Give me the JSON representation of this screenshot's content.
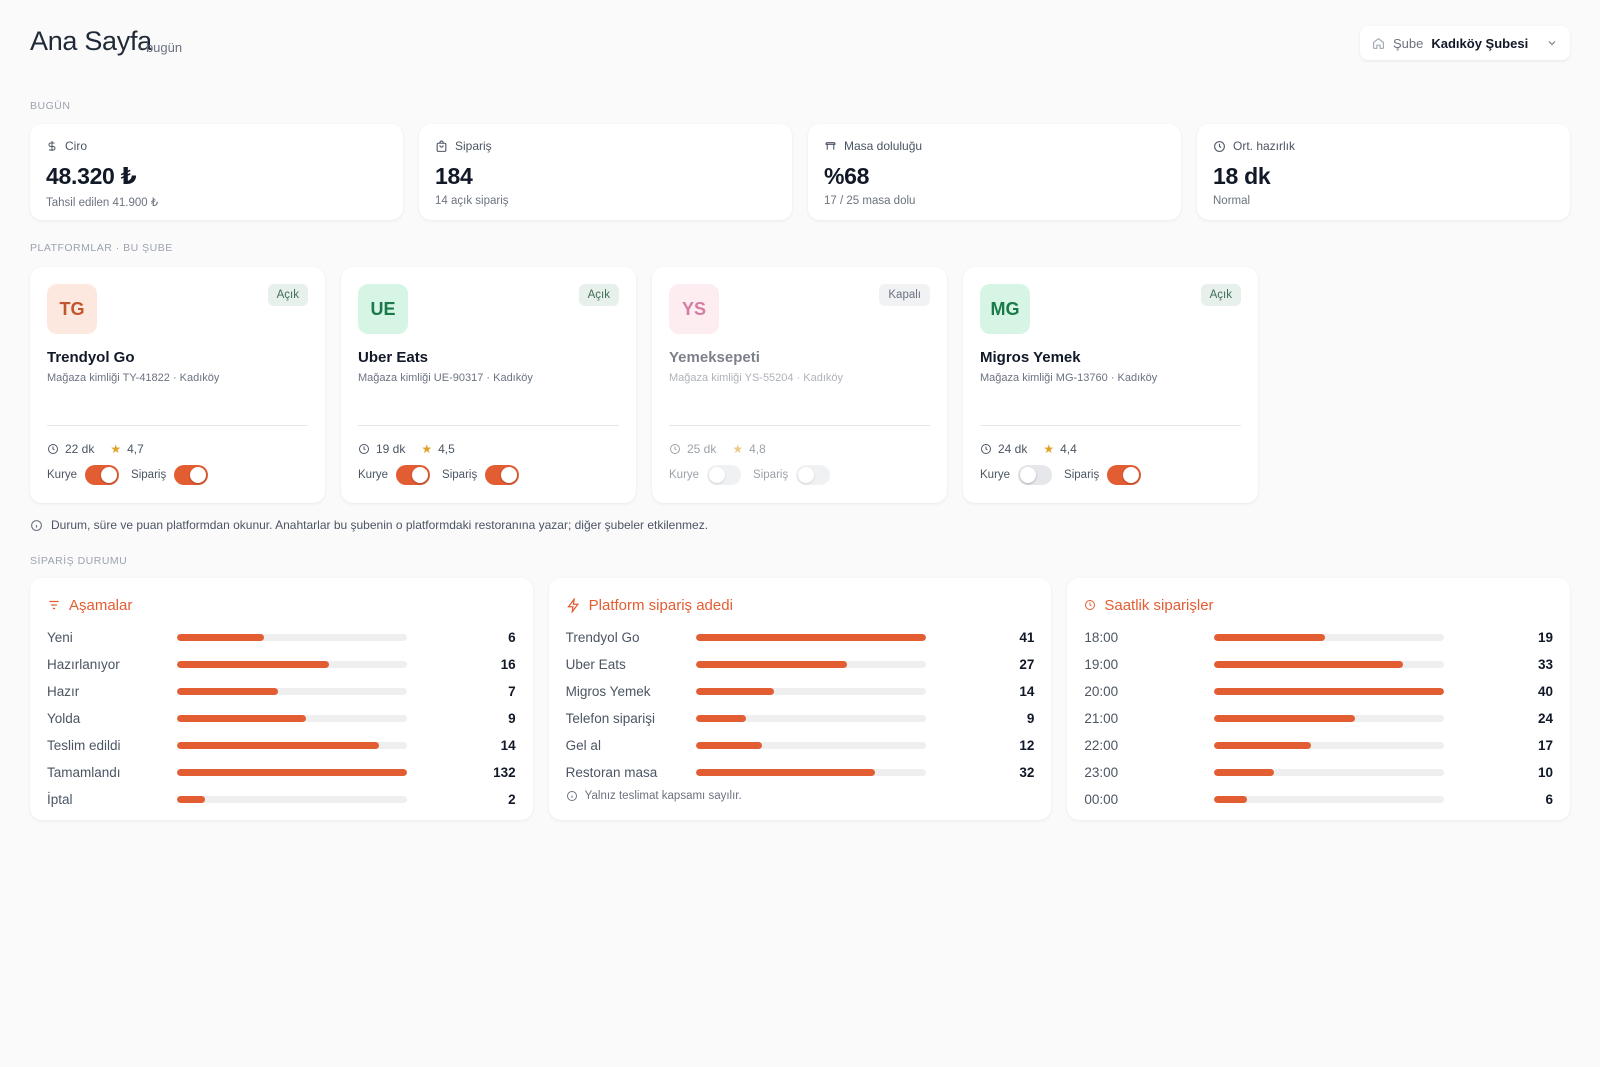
{
  "header": {
    "title": "Ana Sayfa",
    "subtitle": "· bugün",
    "branch_label": "Şube",
    "branch_value": "Kadıköy Şubesi"
  },
  "sections": {
    "today": "BUGÜN",
    "platforms": "PLATFORMLAR · BU ŞUBE",
    "order_status": "SİPARİŞ DURUMU"
  },
  "kpis": [
    {
      "label": "Ciro",
      "value": "48.320 ₺",
      "sub": "Tahsil edilen 41.900 ₺",
      "icon": "dollar-icon"
    },
    {
      "label": "Sipariş",
      "value": "184",
      "sub": "14 açık sipariş",
      "icon": "shopping-bag-icon"
    },
    {
      "label": "Masa doluluğu",
      "value": "%68",
      "sub": "17 / 25 masa dolu",
      "icon": "table-icon"
    },
    {
      "label": "Ort. hazırlık",
      "value": "18 dk",
      "sub": "Normal",
      "icon": "clock-icon"
    }
  ],
  "platforms": [
    {
      "initials": "TG",
      "name": "Trendyol Go",
      "store": "Mağaza kimliği TY-41822 · Kadıköy",
      "status": "Açık",
      "open": true,
      "time": "22 dk",
      "rating": "4,7",
      "courier_label": "Kurye",
      "order_label": "Sipariş",
      "courier_on": true,
      "order_on": true,
      "logo_bg": "#fde8e0",
      "logo_fg": "#c2552b"
    },
    {
      "initials": "UE",
      "name": "Uber Eats",
      "store": "Mağaza kimliği UE-90317 · Kadıköy",
      "status": "Açık",
      "open": true,
      "time": "19 dk",
      "rating": "4,5",
      "courier_label": "Kurye",
      "order_label": "Sipariş",
      "courier_on": true,
      "order_on": true,
      "logo_bg": "#d6f5e4",
      "logo_fg": "#1a7a4a"
    },
    {
      "initials": "YS",
      "name": "Yemeksepeti",
      "store": "Mağaza kimliği YS-55204 · Kadıköy",
      "status": "Kapalı",
      "open": false,
      "time": "25 dk",
      "rating": "4,8",
      "courier_label": "Kurye",
      "order_label": "Sipariş",
      "courier_on": false,
      "order_on": false,
      "logo_bg": "#fde4ea",
      "logo_fg": "#c0477a"
    },
    {
      "initials": "MG",
      "name": "Migros Yemek",
      "store": "Mağaza kimliği MG-13760 · Kadıköy",
      "status": "Açık",
      "open": true,
      "time": "24 dk",
      "rating": "4,4",
      "courier_label": "Kurye",
      "order_label": "Sipariş",
      "courier_on": false,
      "order_on": true,
      "logo_bg": "#d6f5e4",
      "logo_fg": "#1a7a4a"
    }
  ],
  "info_note": "Durum, süre ve puan platformdan okunur. Anahtarlar bu şubenin o platformdaki restoranına yazar; diğer şubeler etkilenmez.",
  "panels": [
    {
      "title": "Aşamalar",
      "icon": "list-filter-icon",
      "max": 132,
      "rows": [
        {
          "label": "Yeni",
          "value": 6,
          "fill": 0.38
        },
        {
          "label": "Hazırlanıyor",
          "value": 16,
          "fill": 0.66
        },
        {
          "label": "Hazır",
          "value": 7,
          "fill": 0.44
        },
        {
          "label": "Yolda",
          "value": 9,
          "fill": 0.56
        },
        {
          "label": "Teslim edildi",
          "value": 14,
          "fill": 0.88
        },
        {
          "label": "Tamamlandı",
          "value": 132,
          "fill": 1.0
        },
        {
          "label": "İptal",
          "value": 2,
          "fill": 0.12
        }
      ]
    },
    {
      "title": "Platform sipariş adedi",
      "icon": "bolt-icon",
      "note": "Yalnız teslimat kapsamı sayılır.",
      "rows": [
        {
          "label": "Trendyol Go",
          "value": 41,
          "fill": 1.0
        },
        {
          "label": "Uber Eats",
          "value": 27,
          "fill": 0.66
        },
        {
          "label": "Migros Yemek",
          "value": 14,
          "fill": 0.34
        },
        {
          "label": "Telefon siparişi",
          "value": 9,
          "fill": 0.22
        },
        {
          "label": "Gel al",
          "value": 12,
          "fill": 0.29
        },
        {
          "label": "Restoran masa",
          "value": 32,
          "fill": 0.78
        }
      ]
    },
    {
      "title": "Saatlik siparişler",
      "icon": "clock-icon",
      "rows": [
        {
          "label": "18:00",
          "value": 19,
          "fill": 0.48
        },
        {
          "label": "19:00",
          "value": 33,
          "fill": 0.82
        },
        {
          "label": "20:00",
          "value": 40,
          "fill": 1.0
        },
        {
          "label": "21:00",
          "value": 24,
          "fill": 0.61
        },
        {
          "label": "22:00",
          "value": 17,
          "fill": 0.42
        },
        {
          "label": "23:00",
          "value": 10,
          "fill": 0.26
        },
        {
          "label": "00:00",
          "value": 6,
          "fill": 0.14
        }
      ]
    }
  ],
  "colors": {
    "accent": "#e35d33",
    "track": "#efefef"
  }
}
